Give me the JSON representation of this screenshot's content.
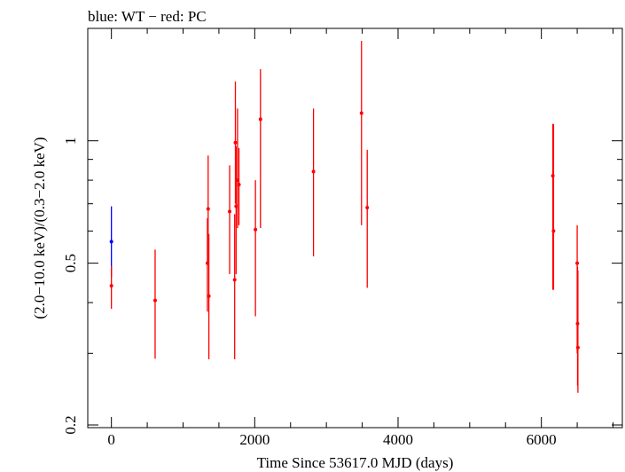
{
  "chart_data": {
    "type": "scatter",
    "title": "blue: WT − red: PC",
    "xlabel": "Time Since 53617.0 MJD (days)",
    "ylabel": "(2.0−10.0 keV)/(0.3−2.0 keV)",
    "xlim": [
      -330,
      7130
    ],
    "ylim": [
      0.197,
      1.89
    ],
    "yscale": "log",
    "x_ticks": [
      0,
      2000,
      4000,
      6000
    ],
    "x_tick_labels": [
      "0",
      "2000",
      "4000",
      "6000"
    ],
    "y_ticks": [
      0.2,
      0.5,
      1
    ],
    "y_tick_labels": [
      "0.2",
      "0.5",
      "1"
    ],
    "grid": false,
    "series": [
      {
        "name": "WT",
        "color": "#0000ff",
        "points": [
          {
            "x": 0,
            "y": 0.565,
            "ylo": 0.462,
            "yhi": 0.69
          }
        ]
      },
      {
        "name": "PC",
        "color": "#ff0000",
        "points": [
          {
            "x": 0,
            "y": 0.44,
            "ylo": 0.386,
            "yhi": 0.492
          },
          {
            "x": 610,
            "y": 0.405,
            "ylo": 0.291,
            "yhi": 0.54
          },
          {
            "x": 1340,
            "y": 0.5,
            "ylo": 0.38,
            "yhi": 0.645
          },
          {
            "x": 1350,
            "y": 0.68,
            "ylo": 0.5,
            "yhi": 0.92
          },
          {
            "x": 1360,
            "y": 0.415,
            "ylo": 0.29,
            "yhi": 0.59
          },
          {
            "x": 1650,
            "y": 0.67,
            "ylo": 0.47,
            "yhi": 0.87
          },
          {
            "x": 1720,
            "y": 0.455,
            "ylo": 0.29,
            "yhi": 0.66
          },
          {
            "x": 1730,
            "y": 0.99,
            "ylo": 0.7,
            "yhi": 1.4
          },
          {
            "x": 1740,
            "y": 0.69,
            "ylo": 0.47,
            "yhi": 0.97
          },
          {
            "x": 1760,
            "y": 0.8,
            "ylo": 0.61,
            "yhi": 1.2
          },
          {
            "x": 1780,
            "y": 0.78,
            "ylo": 0.62,
            "yhi": 0.96
          },
          {
            "x": 2010,
            "y": 0.605,
            "ylo": 0.37,
            "yhi": 0.8
          },
          {
            "x": 2080,
            "y": 1.13,
            "ylo": 0.61,
            "yhi": 1.5
          },
          {
            "x": 2820,
            "y": 0.84,
            "ylo": 0.52,
            "yhi": 1.2
          },
          {
            "x": 3490,
            "y": 1.17,
            "ylo": 0.62,
            "yhi": 1.76
          },
          {
            "x": 3570,
            "y": 0.685,
            "ylo": 0.435,
            "yhi": 0.95
          },
          {
            "x": 6160,
            "y": 0.82,
            "ylo": 0.43,
            "yhi": 1.1
          },
          {
            "x": 6170,
            "y": 0.6,
            "ylo": 0.43,
            "yhi": 1.1
          },
          {
            "x": 6500,
            "y": 0.5,
            "ylo": 0.3,
            "yhi": 0.62
          },
          {
            "x": 6505,
            "y": 0.355,
            "ylo": 0.25,
            "yhi": 0.49
          },
          {
            "x": 6510,
            "y": 0.31,
            "ylo": 0.24,
            "yhi": 0.48
          }
        ]
      }
    ]
  }
}
